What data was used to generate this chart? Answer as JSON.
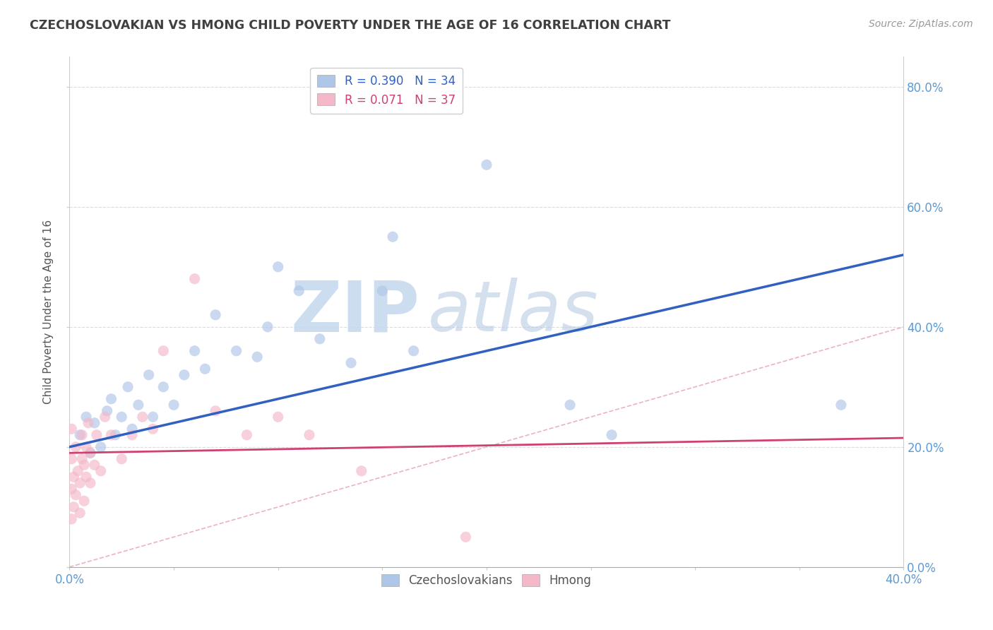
{
  "title": "CZECHOSLOVAKIAN VS HMONG CHILD POVERTY UNDER THE AGE OF 16 CORRELATION CHART",
  "source": "Source: ZipAtlas.com",
  "ylabel": "Child Poverty Under the Age of 16",
  "xlim": [
    0.0,
    0.4
  ],
  "ylim": [
    0.0,
    0.85
  ],
  "y_ticks": [
    0.0,
    0.2,
    0.4,
    0.6,
    0.8
  ],
  "y_tick_labels": [
    "0.0%",
    "20.0%",
    "40.0%",
    "60.0%",
    "80.0%"
  ],
  "x_tick_labels_edge": [
    "0.0%",
    "40.0%"
  ],
  "watermark_zip": "ZIP",
  "watermark_atlas": "atlas",
  "legend_items": [
    {
      "label": "R = 0.390   N = 34",
      "color": "#aec6e8"
    },
    {
      "label": "R = 0.071   N = 37",
      "color": "#f4b8c8"
    }
  ],
  "legend_labels": [
    "Czechoslovakians",
    "Hmong"
  ],
  "blue_scatter_x": [
    0.005,
    0.008,
    0.01,
    0.012,
    0.015,
    0.018,
    0.02,
    0.022,
    0.025,
    0.028,
    0.03,
    0.033,
    0.038,
    0.04,
    0.045,
    0.05,
    0.055,
    0.06,
    0.065,
    0.07,
    0.08,
    0.09,
    0.095,
    0.1,
    0.11,
    0.12,
    0.135,
    0.15,
    0.155,
    0.165,
    0.2,
    0.24,
    0.26,
    0.37
  ],
  "blue_scatter_y": [
    0.22,
    0.25,
    0.19,
    0.24,
    0.2,
    0.26,
    0.28,
    0.22,
    0.25,
    0.3,
    0.23,
    0.27,
    0.32,
    0.25,
    0.3,
    0.27,
    0.32,
    0.36,
    0.33,
    0.42,
    0.36,
    0.35,
    0.4,
    0.5,
    0.46,
    0.38,
    0.34,
    0.46,
    0.55,
    0.36,
    0.67,
    0.27,
    0.22,
    0.27
  ],
  "pink_scatter_x": [
    0.001,
    0.001,
    0.001,
    0.001,
    0.002,
    0.002,
    0.003,
    0.003,
    0.004,
    0.005,
    0.005,
    0.006,
    0.006,
    0.007,
    0.007,
    0.008,
    0.008,
    0.009,
    0.01,
    0.01,
    0.012,
    0.013,
    0.015,
    0.017,
    0.02,
    0.025,
    0.03,
    0.035,
    0.04,
    0.045,
    0.06,
    0.07,
    0.085,
    0.1,
    0.115,
    0.14,
    0.19
  ],
  "pink_scatter_y": [
    0.08,
    0.13,
    0.18,
    0.23,
    0.1,
    0.15,
    0.12,
    0.2,
    0.16,
    0.09,
    0.14,
    0.18,
    0.22,
    0.11,
    0.17,
    0.2,
    0.15,
    0.24,
    0.14,
    0.19,
    0.17,
    0.22,
    0.16,
    0.25,
    0.22,
    0.18,
    0.22,
    0.25,
    0.23,
    0.36,
    0.48,
    0.26,
    0.22,
    0.25,
    0.22,
    0.16,
    0.05
  ],
  "blue_line_x": [
    0.0,
    0.4
  ],
  "blue_line_y": [
    0.2,
    0.52
  ],
  "pink_line_x": [
    0.0,
    0.4
  ],
  "pink_line_y": [
    0.19,
    0.215
  ],
  "diag_line_color": "#e8a0b0",
  "background_color": "#ffffff",
  "grid_color": "#d8d8d8",
  "blue_dot_color": "#aec6e8",
  "pink_dot_color": "#f4b8c8",
  "blue_line_color": "#3060c0",
  "pink_line_color": "#d04070",
  "title_color": "#404040",
  "axis_tick_color": "#5b9bd5",
  "dot_size": 120,
  "dot_alpha": 0.65
}
